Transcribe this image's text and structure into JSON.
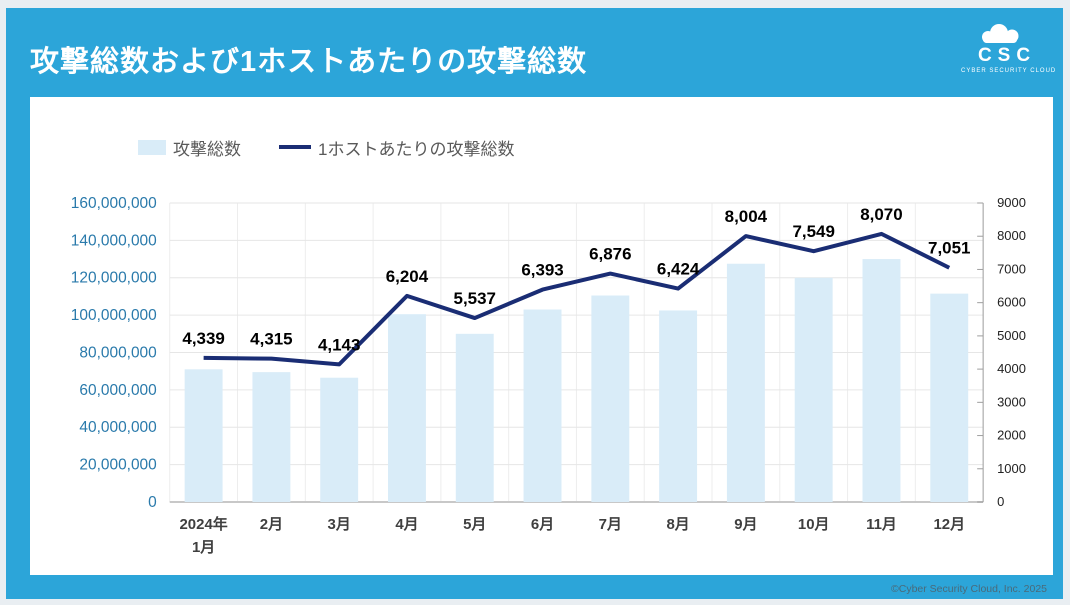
{
  "header": {
    "title": "攻撃総数および1ホストあたりの攻撃総数",
    "logo": {
      "abbr": "CSC",
      "subtitle": "CYBER SECURITY CLOUD",
      "icon": "cloud-icon"
    }
  },
  "legend": [
    {
      "label": "攻撃総数",
      "type": "bar",
      "swatch": "#d9ecf8"
    },
    {
      "label": "1ホストあたりの攻撃総数",
      "type": "line",
      "swatch": "#1a2d74"
    }
  ],
  "colors": {
    "frame_blue": "#2ca5d9",
    "bar_fill": "#d9ecf8",
    "line_navy": "#1a2d74",
    "left_axis_label": "#2a7aab",
    "right_axis_label": "#222222",
    "x_axis_label": "#3f3f3f",
    "gridline": "#e6e6e6",
    "data_label": "#000000"
  },
  "chart_data": {
    "type": "bar+line",
    "title": "攻撃総数および1ホストあたりの攻撃総数",
    "categories": [
      "2024年\n1月",
      "2月",
      "3月",
      "4月",
      "5月",
      "6月",
      "7月",
      "8月",
      "9月",
      "10月",
      "11月",
      "12月"
    ],
    "series": [
      {
        "name": "攻撃総数",
        "type": "bar",
        "axis": "left",
        "values": [
          71000000,
          69500000,
          66500000,
          100500000,
          90000000,
          103000000,
          110500000,
          102500000,
          127500000,
          120000000,
          130000000,
          111500000
        ]
      },
      {
        "name": "1ホストあたりの攻撃総数",
        "type": "line",
        "axis": "right",
        "values": [
          4339,
          4315,
          4143,
          6204,
          5537,
          6393,
          6876,
          6424,
          8004,
          7549,
          8070,
          7051
        ],
        "data_labels": [
          "4,339",
          "4,315",
          "4,143",
          "6,204",
          "5,537",
          "6,393",
          "6,876",
          "6,424",
          "8,004",
          "7,549",
          "8,070",
          "7,051"
        ]
      }
    ],
    "left_axis": {
      "min": 0,
      "max": 160000000,
      "step": 20000000,
      "tick_labels": [
        "0",
        "20,000,000",
        "40,000,000",
        "60,000,000",
        "80,000,000",
        "100,000,000",
        "120,000,000",
        "140,000,000",
        "160,000,000"
      ]
    },
    "right_axis": {
      "min": 0,
      "max": 9000,
      "step": 1000,
      "tick_labels": [
        "0",
        "1000",
        "2000",
        "3000",
        "4000",
        "5000",
        "6000",
        "7000",
        "8000",
        "9000"
      ]
    },
    "grid": true,
    "legend_position": "top-left"
  },
  "footer": {
    "copyright": "©Cyber Security Cloud, Inc. 2025"
  }
}
